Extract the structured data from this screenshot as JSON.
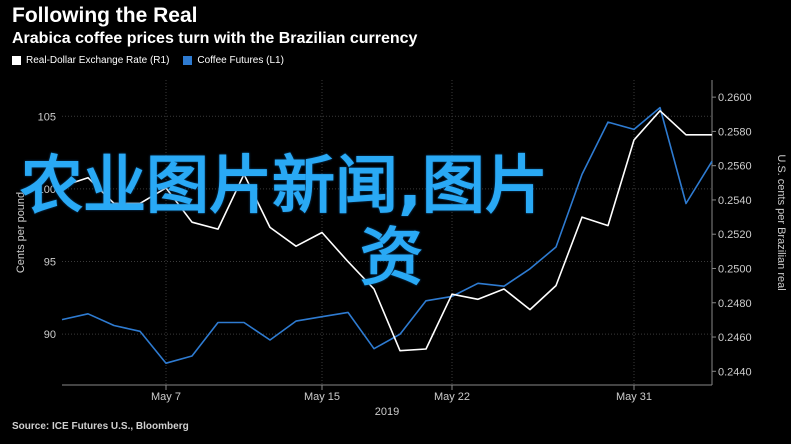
{
  "header": {
    "title": "Following the Real",
    "subtitle": "Arabica coffee prices turn with the Brazilian currency"
  },
  "legend": [
    {
      "label": "Real-Dollar Exchange Rate (R1)",
      "color": "#ffffff"
    },
    {
      "label": "Coffee Futures (L1)",
      "color": "#2e7bd1"
    }
  ],
  "source": "Source: ICE Futures U.S., Bloomberg",
  "overlay_text": {
    "line1": "农业图片新闻,图片",
    "line2": "资"
  },
  "colors": {
    "background": "#000000",
    "coffee": "#2e7bd1",
    "real": "#ffffff",
    "grid": "#3a3a3a"
  },
  "chart_data": {
    "type": "line",
    "x": [
      "May 1",
      "May 2",
      "May 3",
      "May 4",
      "May 7",
      "May 8",
      "May 9",
      "May 10",
      "May 11",
      "May 14",
      "May 15",
      "May 16",
      "May 17",
      "May 18",
      "May 21",
      "May 22",
      "May 23",
      "May 24",
      "May 25",
      "May 28",
      "May 29",
      "May 30",
      "May 31",
      "Jun 1",
      "Jun 4",
      "Jun 5"
    ],
    "x_tick_labels": [
      "May 7",
      "May 15",
      "May 22",
      "May 31"
    ],
    "x_year_label": "2019",
    "left_axis": {
      "label": "Cents per pound",
      "ticks": [
        90,
        95,
        100,
        105
      ],
      "ylim": [
        86.5,
        107.5
      ]
    },
    "right_axis": {
      "label": "U.S. cents per Brazilian real",
      "ticks": [
        "0.2440",
        "0.2460",
        "0.2480",
        "0.2500",
        "0.2520",
        "0.2540",
        "0.2560",
        "0.2580",
        "0.2600"
      ],
      "ylim": [
        0.2432,
        0.261
      ]
    },
    "series": [
      {
        "name": "Coffee Futures (L1)",
        "axis": "left",
        "color": "#2e7bd1",
        "values": [
          91.0,
          91.4,
          90.6,
          90.2,
          88.0,
          88.5,
          90.8,
          90.8,
          89.6,
          90.9,
          91.2,
          91.5,
          89.0,
          90.0,
          92.3,
          92.6,
          93.5,
          93.3,
          94.5,
          96.0,
          101.0,
          104.6,
          104.1,
          105.6,
          99.0,
          101.9
        ]
      },
      {
        "name": "Real-Dollar Exchange Rate (R1)",
        "axis": "right",
        "color": "#ffffff",
        "values": [
          0.2548,
          0.2553,
          0.2538,
          0.2538,
          0.2547,
          0.2527,
          0.2523,
          0.2555,
          0.2524,
          0.2513,
          0.2521,
          0.2504,
          0.2488,
          0.2452,
          0.2453,
          0.2485,
          0.2482,
          0.2488,
          0.2476,
          0.249,
          0.253,
          0.2525,
          0.2575,
          0.2592,
          0.2578,
          0.2578
        ]
      }
    ]
  }
}
